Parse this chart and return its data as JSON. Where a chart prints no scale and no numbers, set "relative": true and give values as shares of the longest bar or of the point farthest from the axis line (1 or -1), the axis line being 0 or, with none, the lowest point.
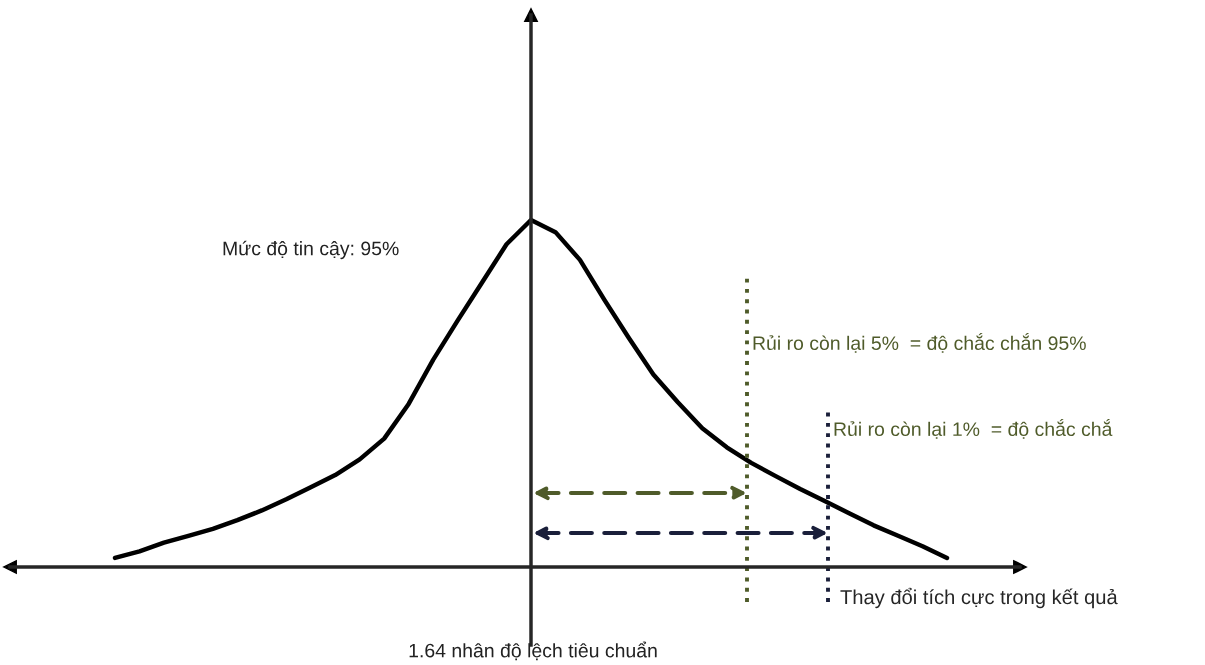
{
  "chart_data": {
    "type": "line",
    "relative": true,
    "xlabel": "Thay đổi tích cực trong kết quả",
    "categories": [
      null,
      null,
      null,
      null,
      null,
      null,
      null,
      null,
      null,
      null,
      null,
      null,
      null,
      null,
      null,
      null,
      null,
      null,
      null,
      null,
      null,
      null,
      null,
      null,
      null,
      null,
      null,
      null,
      null,
      null,
      null,
      null,
      null,
      null,
      null
    ],
    "series": [
      {
        "color": "#000000",
        "values": [
          0.026,
          0.045,
          0.07,
          0.09,
          0.11,
          0.135,
          0.163,
          0.195,
          0.23,
          0.265,
          0.31,
          0.37,
          0.47,
          0.597,
          0.71,
          0.82,
          0.93,
          1,
          0.965,
          0.885,
          0.77,
          0.66,
          0.555,
          0.475,
          0.4,
          0.345,
          0.3,
          0.262,
          0.225,
          0.19,
          0.155,
          0.12,
          0.09,
          0.06,
          0.026
        ]
      }
    ],
    "annotations": [
      "Mức độ tin cậy: 95%",
      "Rủi ro còn lại 5%  = độ chắc chắn 95%",
      "Rủi ro còn lại 1%  = độ chắc chắ",
      "1.64 nhân độ lệch tiêu chuẩn"
    ]
  }
}
